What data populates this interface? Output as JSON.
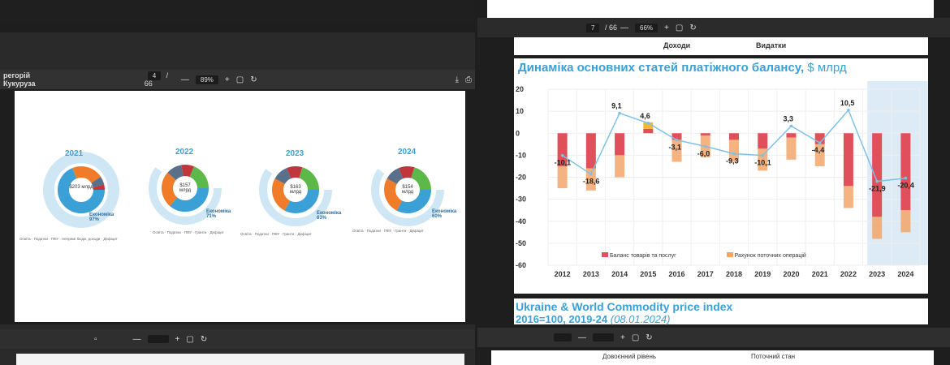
{
  "left_viewer": {
    "doc_title": "регорій Кукуруза",
    "page_current": "4",
    "page_sep": "/",
    "page_total": "66",
    "zoom": "89%",
    "years": [
      "2021",
      "2022",
      "2023",
      "2024"
    ],
    "donuts": [
      {
        "center": "$203 млрд",
        "caption": "Економіка 97%"
      },
      {
        "center": "$157 млрд",
        "caption": "Економіка 71%"
      },
      {
        "center": "$163 млрд",
        "caption": "Економіка 63%"
      },
      {
        "center": "$154 млрд",
        "caption": "Економіка 60%"
      }
    ],
    "legend_words": [
      "Освіта",
      "Податки",
      "ПФУ",
      "Непрямі бюдж. доходи",
      "Дефіцит",
      "Гранти"
    ]
  },
  "right_viewer": {
    "page_current": "7",
    "page_sep": "/",
    "page_total": "66",
    "zoom": "66%",
    "header_left": "Доходи",
    "header_right": "Видатки",
    "chart_title": "Динаміка основних статей платіжного балансу,",
    "chart_unit": "$ млрд",
    "legend_items": [
      "Баланс товарів та послуг",
      "Рахунок поточних операцій"
    ],
    "next_title_line1": "Ukraine & World Commodity price index",
    "next_title_line2": "2016=100, 2019-24",
    "next_title_date": "(08.01.2024)"
  },
  "bottom": {
    "left_label": "Довоєнний рівень",
    "right_label": "Поточний стан"
  },
  "colors": {
    "red": "#e0505a",
    "orange": "#f2a66a",
    "yellow": "#f5b731",
    "line": "#7ec1e6",
    "blue": "#3aa0d6",
    "teal": "#2f8fc6",
    "green": "#5cb848"
  },
  "chart_data": {
    "type": "bar",
    "title": "Динаміка основних статей платіжного балансу, $ млрд",
    "categories": [
      "2012",
      "2013",
      "2014",
      "2015",
      "2016",
      "2017",
      "2018",
      "2019",
      "2020",
      "2021",
      "2022",
      "2023",
      "2024"
    ],
    "ylim": [
      -60,
      20
    ],
    "yticks": [
      20,
      10,
      0,
      -10,
      -20,
      -30,
      -40,
      -50,
      -60
    ],
    "series": [
      {
        "name": "Баланс товарів та послуг",
        "type": "bar",
        "values": [
          -15,
          -16,
          -10,
          2,
          -3,
          -1,
          -3,
          -7,
          -2,
          -5,
          -24,
          -38,
          -35
        ]
      },
      {
        "name": "Рахунок поточних операцій",
        "type": "line",
        "values": [
          -10.1,
          -18.6,
          9.1,
          4.6,
          -3.1,
          -6.0,
          -9.3,
          -10.1,
          3.3,
          -4.4,
          10.5,
          -21.9,
          -20.4
        ]
      }
    ],
    "data_labels": [
      "-10,1",
      "-18,6",
      "9,1",
      "4,6",
      "-3,1",
      "-6,0",
      "-9,3",
      "-10,1",
      "3,3",
      "-4,4",
      "10,5",
      "-21,9",
      "-20,4"
    ]
  }
}
